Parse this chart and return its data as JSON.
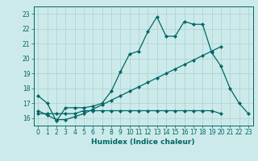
{
  "xlabel": "Humidex (Indice chaleur)",
  "bg_color": "#cdeaea",
  "grid_color": "#aed4d4",
  "line_color": "#006666",
  "xlim": [
    -0.5,
    23.5
  ],
  "ylim": [
    15.5,
    23.5
  ],
  "yticks": [
    16,
    17,
    18,
    19,
    20,
    21,
    22,
    23
  ],
  "xticks": [
    0,
    1,
    2,
    3,
    4,
    5,
    6,
    7,
    8,
    9,
    10,
    11,
    12,
    13,
    14,
    15,
    16,
    17,
    18,
    19,
    20,
    21,
    22,
    23
  ],
  "series1_x": [
    0,
    1,
    2,
    3,
    4,
    5,
    6,
    7,
    8,
    9,
    10,
    11,
    12,
    13,
    14,
    15,
    16,
    17,
    18,
    19,
    20,
    21,
    22,
    23
  ],
  "series1_y": [
    17.5,
    17.0,
    15.8,
    16.7,
    16.7,
    16.7,
    16.8,
    17.0,
    17.8,
    19.1,
    20.3,
    20.5,
    21.8,
    22.8,
    21.5,
    21.5,
    22.5,
    22.3,
    22.3,
    20.4,
    19.5,
    18.0,
    17.0,
    16.3
  ],
  "series2_x": [
    0,
    1,
    2,
    3,
    4,
    5,
    6,
    7,
    8,
    9,
    10,
    11,
    12,
    13,
    14,
    15,
    16,
    17,
    18,
    19,
    20
  ],
  "series2_y": [
    16.5,
    16.2,
    15.9,
    15.9,
    16.1,
    16.3,
    16.6,
    16.9,
    17.2,
    17.5,
    17.8,
    18.1,
    18.4,
    18.7,
    19.0,
    19.3,
    19.6,
    19.9,
    20.2,
    20.5,
    20.8
  ],
  "series3_x": [
    0,
    1,
    2,
    3,
    4,
    5,
    6,
    7,
    8,
    9,
    10,
    11,
    12,
    13,
    14,
    15,
    16,
    17,
    18,
    19,
    20
  ],
  "series3_y": [
    16.3,
    16.3,
    16.3,
    16.3,
    16.3,
    16.5,
    16.5,
    16.5,
    16.5,
    16.5,
    16.5,
    16.5,
    16.5,
    16.5,
    16.5,
    16.5,
    16.5,
    16.5,
    16.5,
    16.5,
    16.3
  ]
}
